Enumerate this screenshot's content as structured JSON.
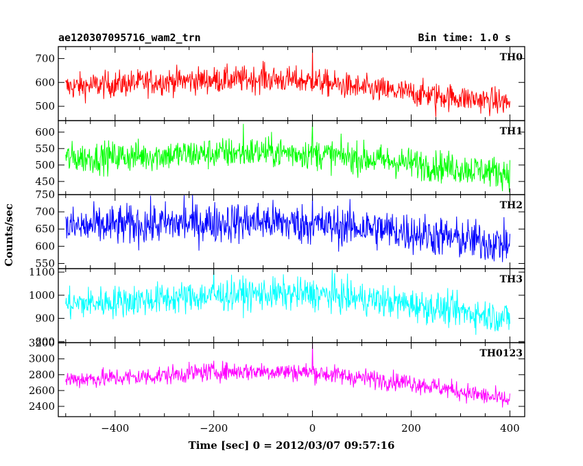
{
  "title_left": "ae120307095716_wam2_trn",
  "title_right": "Bin time: 1.0 s",
  "ylabel": "Counts/sec",
  "xlabel": "Time [sec] 0 = 2012/03/07 09:57:16",
  "xlim": [
    -515,
    430
  ],
  "xticks": [
    -400,
    -200,
    0,
    200,
    400
  ],
  "chart_data": [
    {
      "type": "line",
      "name": "TH0",
      "color": "#ff0000",
      "ylim": [
        440,
        750
      ],
      "yticks": [
        500,
        600,
        700
      ],
      "x_range": [
        -500,
        400
      ],
      "trend": [
        [
          -500,
          580
        ],
        [
          -300,
          605
        ],
        [
          -100,
          615
        ],
        [
          0,
          605
        ],
        [
          100,
          575
        ],
        [
          200,
          555
        ],
        [
          300,
          535
        ],
        [
          400,
          515
        ]
      ],
      "noise": 28,
      "spikes": [
        [
          0,
          745
        ],
        [
          -100,
          690
        ],
        [
          250,
          455
        ]
      ]
    },
    {
      "type": "line",
      "name": "TH1",
      "color": "#00ff00",
      "ylim": [
        410,
        635
      ],
      "yticks": [
        450,
        500,
        550,
        600
      ],
      "x_range": [
        -500,
        400
      ],
      "trend": [
        [
          -500,
          520
        ],
        [
          -300,
          530
        ],
        [
          -100,
          540
        ],
        [
          0,
          535
        ],
        [
          100,
          520
        ],
        [
          200,
          505
        ],
        [
          300,
          490
        ],
        [
          400,
          475
        ]
      ],
      "noise": 24,
      "spikes": [
        [
          0,
          630
        ],
        [
          -140,
          625
        ]
      ]
    },
    {
      "type": "line",
      "name": "TH2",
      "color": "#0000ff",
      "ylim": [
        535,
        750
      ],
      "yticks": [
        550,
        600,
        650,
        700,
        750
      ],
      "x_range": [
        -500,
        400
      ],
      "trend": [
        [
          -500,
          655
        ],
        [
          -300,
          665
        ],
        [
          -100,
          672
        ],
        [
          0,
          662
        ],
        [
          100,
          655
        ],
        [
          200,
          640
        ],
        [
          300,
          620
        ],
        [
          400,
          605
        ]
      ],
      "noise": 30,
      "spikes": [
        [
          -260,
          748
        ],
        [
          0,
          748
        ]
      ]
    },
    {
      "type": "line",
      "name": "TH3",
      "color": "#00ffff",
      "ylim": [
        795,
        1115
      ],
      "yticks": [
        800,
        900,
        1000,
        1100
      ],
      "x_range": [
        -500,
        400
      ],
      "trend": [
        [
          -500,
          960
        ],
        [
          -300,
          985
        ],
        [
          -150,
          1005
        ],
        [
          0,
          1005
        ],
        [
          100,
          985
        ],
        [
          200,
          960
        ],
        [
          300,
          930
        ],
        [
          400,
          900
        ]
      ],
      "noise": 35,
      "spikes": [
        [
          -200,
          1110
        ],
        [
          40,
          1110
        ]
      ]
    },
    {
      "type": "line",
      "name": "TH0123",
      "color": "#ff00ff",
      "ylim": [
        2270,
        3205
      ],
      "yticks": [
        2400,
        2600,
        2800,
        3000,
        3200
      ],
      "x_range": [
        -500,
        400
      ],
      "trend": [
        [
          -500,
          2740
        ],
        [
          -350,
          2770
        ],
        [
          -200,
          2840
        ],
        [
          -100,
          2845
        ],
        [
          0,
          2830
        ],
        [
          100,
          2760
        ],
        [
          200,
          2700
        ],
        [
          300,
          2590
        ],
        [
          400,
          2470
        ]
      ],
      "noise": 60,
      "spikes": [
        [
          0,
          3200
        ]
      ]
    }
  ]
}
